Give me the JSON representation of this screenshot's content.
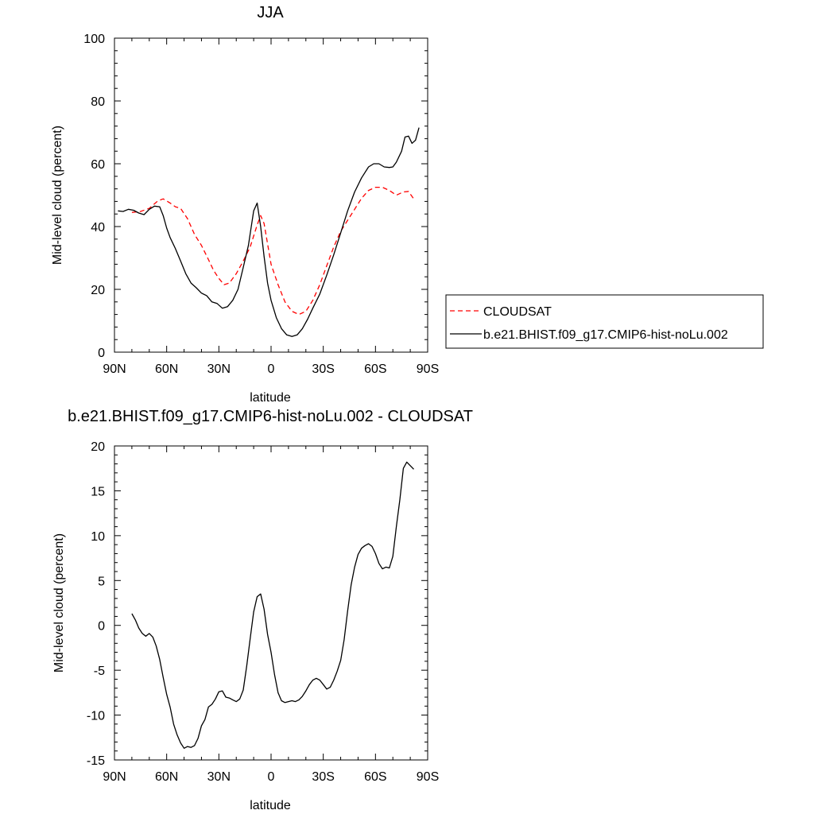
{
  "colors": {
    "obs": "#ff0000",
    "model": "#000000"
  },
  "chart_data": [
    {
      "type": "line",
      "title": "JJA",
      "xlabel": "latitude",
      "ylabel": "Mid-level cloud (percent)",
      "xlim": [
        90,
        -90
      ],
      "ylim": [
        0,
        100
      ],
      "x_ticks": [
        90,
        60,
        30,
        0,
        -30,
        -60,
        -90
      ],
      "x_tick_labels": [
        "90N",
        "60N",
        "30N",
        "0",
        "30S",
        "60S",
        "90S"
      ],
      "y_ticks": [
        0,
        20,
        40,
        60,
        80,
        100
      ],
      "y_tick_labels": [
        "0",
        "20",
        "40",
        "60",
        "80",
        "100"
      ],
      "grid": false,
      "legend_position": "right",
      "series": [
        {
          "name": "CLOUDSAT",
          "style": "dashed",
          "color": "#ff0000",
          "x": [
            80,
            75,
            70,
            65,
            62,
            58,
            55,
            52,
            48,
            44,
            40,
            36,
            33,
            30,
            27,
            24,
            20,
            16,
            12,
            8,
            6,
            4,
            0,
            -4,
            -8,
            -12,
            -16,
            -20,
            -24,
            -28,
            -32,
            -36,
            -40,
            -44,
            -48,
            -52,
            -56,
            -60,
            -64,
            -68,
            -72,
            -76,
            -79,
            -82
          ],
          "y": [
            44.5,
            44.8,
            45.8,
            48.2,
            48.8,
            47.5,
            46.3,
            45.8,
            42.5,
            37.5,
            34.0,
            29.5,
            26.0,
            23.5,
            21.5,
            22.0,
            25.0,
            29.0,
            33.5,
            40.5,
            43.5,
            41.0,
            28.0,
            21.5,
            16.0,
            13.0,
            12.0,
            13.0,
            16.5,
            21.5,
            27.5,
            33.5,
            38.5,
            42.0,
            45.5,
            49.0,
            51.5,
            52.5,
            52.5,
            51.5,
            50.0,
            51.0,
            51.2,
            48.8
          ]
        },
        {
          "name": "b.e21.BHIST.f09_g17.CMIP6-hist-noLu.002",
          "style": "solid",
          "color": "#000000",
          "x": [
            88,
            85,
            82,
            79,
            76,
            73,
            70,
            67,
            64,
            62,
            60,
            58,
            55,
            52,
            49,
            46,
            43,
            40,
            37,
            34,
            31,
            28,
            25,
            22,
            19,
            16,
            13,
            10,
            8,
            6,
            4,
            2,
            0,
            -3,
            -6,
            -9,
            -12,
            -15,
            -18,
            -21,
            -24,
            -28,
            -32,
            -36,
            -40,
            -44,
            -48,
            -52,
            -56,
            -59,
            -62,
            -65,
            -68,
            -70,
            -72,
            -75,
            -77,
            -79,
            -81,
            -83,
            -85
          ],
          "y": [
            45.0,
            44.8,
            45.5,
            45.2,
            44.3,
            43.8,
            45.5,
            46.5,
            46.3,
            43.5,
            39.5,
            36.5,
            33.0,
            29.0,
            25.0,
            22.0,
            20.5,
            18.8,
            18.0,
            16.0,
            15.5,
            14.0,
            14.5,
            16.5,
            20.0,
            27.0,
            34.0,
            45.0,
            47.5,
            40.0,
            30.5,
            22.0,
            16.5,
            11.0,
            7.5,
            5.5,
            5.0,
            5.5,
            7.5,
            10.5,
            14.0,
            18.5,
            24.5,
            31.0,
            38.0,
            45.0,
            51.0,
            55.5,
            59.0,
            60.0,
            60.0,
            59.0,
            58.8,
            59.0,
            60.5,
            64.0,
            68.5,
            68.8,
            66.5,
            67.5,
            71.5
          ]
        }
      ]
    },
    {
      "type": "line",
      "title": "b.e21.BHIST.f09_g17.CMIP6-hist-noLu.002 - CLOUDSAT",
      "xlabel": "latitude",
      "ylabel": "Mid-level cloud (percent)",
      "xlim": [
        90,
        -90
      ],
      "ylim": [
        -15,
        20
      ],
      "x_ticks": [
        90,
        60,
        30,
        0,
        -30,
        -60,
        -90
      ],
      "x_tick_labels": [
        "90N",
        "60N",
        "30N",
        "0",
        "30S",
        "60S",
        "90S"
      ],
      "y_ticks": [
        -15,
        -10,
        -5,
        0,
        5,
        10,
        15,
        20
      ],
      "y_tick_labels": [
        "-15",
        "-10",
        "-5",
        "0",
        "5",
        "10",
        "15",
        "20"
      ],
      "grid": false,
      "series": [
        {
          "style": "solid",
          "color": "#000000",
          "x": [
            80,
            78,
            76,
            74,
            72,
            70,
            68,
            66,
            64,
            62,
            60,
            58,
            56,
            54,
            52,
            50,
            48,
            46,
            44,
            42,
            40,
            38,
            36,
            34,
            32,
            30,
            28,
            26,
            24,
            22,
            20,
            18,
            16,
            14,
            12,
            10,
            8,
            6,
            4,
            2,
            0,
            -2,
            -4,
            -6,
            -8,
            -10,
            -12,
            -14,
            -16,
            -18,
            -20,
            -22,
            -24,
            -26,
            -28,
            -30,
            -32,
            -34,
            -36,
            -38,
            -40,
            -42,
            -44,
            -46,
            -48,
            -50,
            -52,
            -54,
            -56,
            -58,
            -60,
            -62,
            -64,
            -66,
            -68,
            -70,
            -72,
            -74,
            -76,
            -78,
            -80,
            -82
          ],
          "y": [
            1.3,
            0.6,
            -0.3,
            -0.9,
            -1.2,
            -0.9,
            -1.3,
            -2.3,
            -3.8,
            -5.8,
            -7.7,
            -9.1,
            -11.0,
            -12.2,
            -13.1,
            -13.7,
            -13.5,
            -13.6,
            -13.4,
            -12.6,
            -11.2,
            -10.5,
            -9.1,
            -8.8,
            -8.2,
            -7.4,
            -7.3,
            -8.0,
            -8.1,
            -8.3,
            -8.5,
            -8.2,
            -7.2,
            -4.5,
            -1.5,
            1.5,
            3.2,
            3.5,
            1.8,
            -1.0,
            -3.0,
            -5.5,
            -7.5,
            -8.4,
            -8.6,
            -8.5,
            -8.4,
            -8.5,
            -8.3,
            -7.9,
            -7.3,
            -6.6,
            -6.1,
            -5.9,
            -6.1,
            -6.6,
            -7.1,
            -6.9,
            -6.1,
            -5.1,
            -3.9,
            -1.6,
            1.6,
            4.5,
            6.5,
            7.9,
            8.6,
            8.9,
            9.1,
            8.8,
            8.0,
            6.9,
            6.3,
            6.5,
            6.4,
            7.7,
            11.0,
            14.0,
            17.5,
            18.2,
            17.8,
            17.4
          ]
        }
      ]
    }
  ]
}
